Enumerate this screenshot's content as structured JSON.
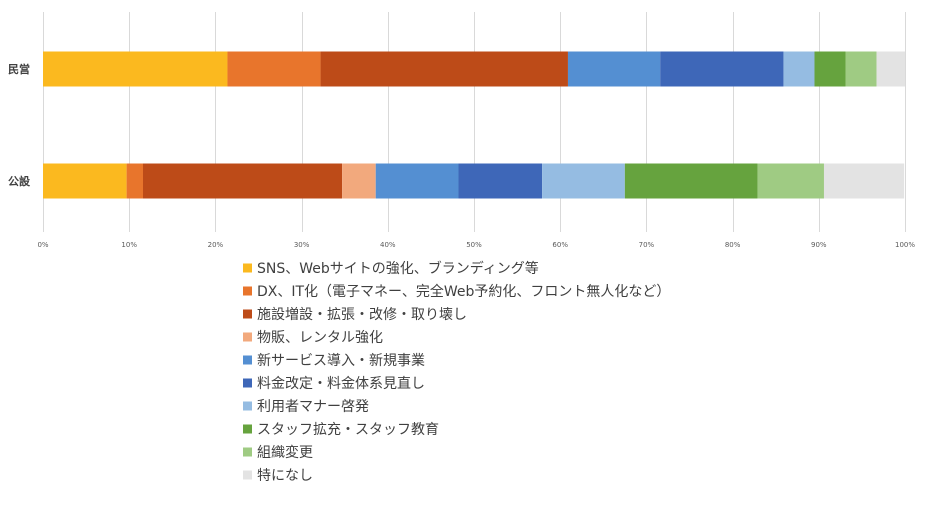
{
  "chart_data": {
    "type": "bar",
    "orientation": "horizontal",
    "stacked": "percent",
    "categories": [
      "民営",
      "公設"
    ],
    "series": [
      {
        "name": "SNS、Webサイトの強化、ブランディング等",
        "values": [
          21.4,
          9.7
        ],
        "color": "#FBB91F"
      },
      {
        "name": "DX、IT化（電子マネー、完全Web予約化、フロント無人化など）",
        "values": [
          10.8,
          1.9
        ],
        "color": "#E8752C"
      },
      {
        "name": "施設増設・拡張・改修・取り壊し",
        "values": [
          28.7,
          23.1
        ],
        "color": "#BD4B18"
      },
      {
        "name": "物販、レンタル強化",
        "values": [
          0,
          3.9
        ],
        "color": "#F2A97D"
      },
      {
        "name": "新サービス導入・新規事業",
        "values": [
          10.7,
          9.6
        ],
        "color": "#548FD2"
      },
      {
        "name": "料金改定・料金体系見直し",
        "values": [
          14.3,
          9.7
        ],
        "color": "#3E67B8"
      },
      {
        "name": "利用者マナー啓発",
        "values": [
          3.6,
          9.6
        ],
        "color": "#95BCE2"
      },
      {
        "name": "スタッフ拡充・スタッフ教育",
        "values": [
          3.6,
          15.4
        ],
        "color": "#66A33E"
      },
      {
        "name": "組織変更",
        "values": [
          3.6,
          7.7
        ],
        "color": "#9FCB83"
      },
      {
        "name": "特になし",
        "values": [
          3.3,
          9.3
        ],
        "color": "#E3E3E3"
      }
    ],
    "x_ticks": [
      "0%",
      "10%",
      "20%",
      "30%",
      "40%",
      "50%",
      "60%",
      "70%",
      "80%",
      "90%",
      "100%"
    ],
    "xlim": [
      0,
      100
    ],
    "grid": "vertical",
    "legend_position": "bottom",
    "title": "",
    "xlabel": "",
    "ylabel": ""
  }
}
